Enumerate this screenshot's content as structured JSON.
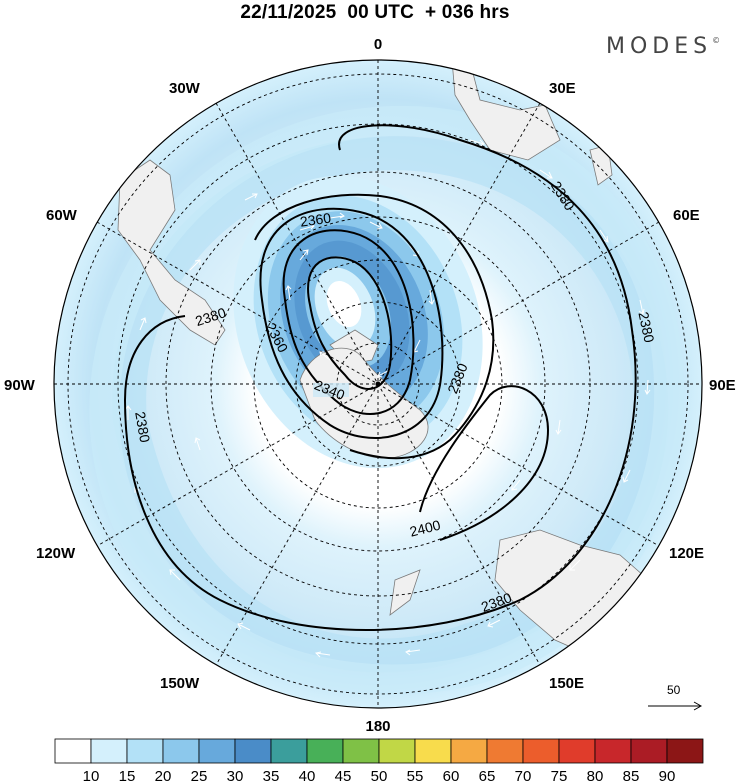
{
  "title": "22/11/2025  00 UTC  + 036 hrs",
  "brand": {
    "name": "MODES",
    "mark": "©"
  },
  "map": {
    "projection": "south-polar-stereographic",
    "longitude_labels": {
      "top": "0",
      "bottom": "180",
      "left": "90W",
      "right": "90E",
      "upper_left_1": "30W",
      "upper_left_2": "60W",
      "upper_right_1": "30E",
      "upper_right_2": "60E",
      "lower_left_1": "120W",
      "lower_left_2": "150W",
      "lower_right_1": "120E",
      "lower_right_2": "150E"
    },
    "contour_labels": [
      "2340",
      "2360",
      "2360",
      "2360",
      "2380",
      "2380",
      "2380",
      "2380",
      "2380",
      "2380",
      "2400"
    ],
    "wind_reference": {
      "value": "50"
    }
  },
  "colorbar": {
    "ticks": [
      "10",
      "15",
      "20",
      "25",
      "30",
      "35",
      "40",
      "45",
      "50",
      "55",
      "60",
      "65",
      "70",
      "75",
      "80",
      "85",
      "90"
    ],
    "colors": [
      "#ffffff",
      "#d4f0fc",
      "#b3e1f7",
      "#8cc8ec",
      "#67a9dc",
      "#4a8cc8",
      "#3b9e9c",
      "#48b058",
      "#7fc146",
      "#c1d746",
      "#f8dc4c",
      "#f5a943",
      "#ef7a32",
      "#ec5d2c",
      "#e03c2b",
      "#c8272b",
      "#ab1c25",
      "#8c1616"
    ]
  },
  "colors": {
    "land": "#f0f0f0",
    "coast": "#7a7a7a",
    "contour": "#000000",
    "grid": "#000000"
  }
}
